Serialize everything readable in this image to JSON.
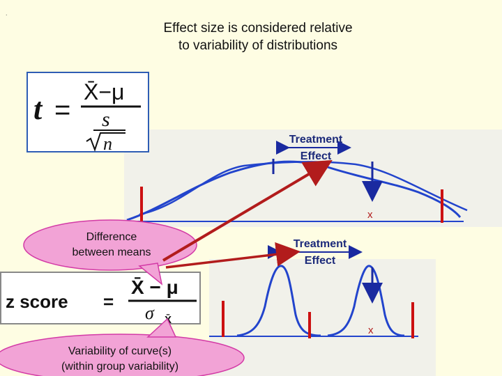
{
  "slide_marker": ".",
  "title_line1": "Effect size is considered relative",
  "title_line2": "to variability of distributions",
  "t_formula": {
    "t": "t",
    "equals": "=",
    "numerator": "X̄−μ",
    "s": "s",
    "n": "n"
  },
  "z_formula": {
    "label": "z score",
    "equals": "=",
    "numerator": "X̄ − μ",
    "sigma": "σ",
    "subscript": "X̄"
  },
  "top_plot": {
    "treatment_line1": "Treatment",
    "treatment_line2": "Effect",
    "x_marker": "x"
  },
  "bottom_plot": {
    "treatment_line1": "Treatment",
    "treatment_line2": "Effect",
    "x_marker": "x"
  },
  "callout_difference": {
    "line1": "Difference",
    "line2": "between means"
  },
  "callout_variability": {
    "line1": "Variability of curve(s)",
    "line2": "(within group variability)"
  },
  "colors": {
    "curve": "#2244cc",
    "marker": "#cc1111",
    "arrow": "#b21c1c",
    "bubble": "#f2a3d6",
    "bubble_border": "#d33aa6",
    "mean_line": "#1a2aa0"
  }
}
